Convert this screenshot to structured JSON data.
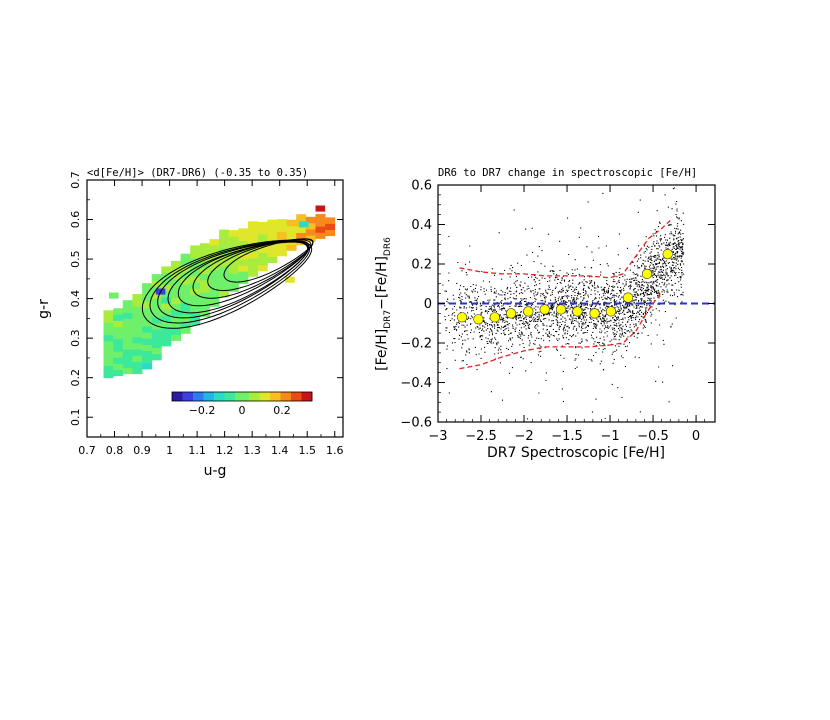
{
  "chart_data": [
    {
      "type": "heatmap",
      "title": "<d[Fe/H]> (DR7-DR6) (-0.35 to 0.35)",
      "xlabel": "u-g",
      "ylabel": "g-r",
      "xlim": [
        0.7,
        1.63
      ],
      "ylim": [
        0.05,
        0.7
      ],
      "xticks": [
        "0.7",
        "0.8",
        "0.9",
        "1",
        "1.1",
        "1.2",
        "1.3",
        "1.4",
        "1.5",
        "1.6"
      ],
      "yticks": [
        "0.1",
        "0.2",
        "0.3",
        "0.4",
        "0.5",
        "0.6",
        "0.7"
      ],
      "grid": false,
      "colorbar": {
        "range": [
          -0.35,
          0.35
        ],
        "ticks": [
          "-0.2",
          "0",
          "0.2"
        ],
        "colors": [
          "#2d1ba0",
          "#3b3fe0",
          "#2f7cf0",
          "#25b4e8",
          "#2adcc8",
          "#3ce89a",
          "#6ef06a",
          "#a8ec3e",
          "#e0e62a",
          "#f7c020",
          "#f78a1a",
          "#ea4a16",
          "#c81414"
        ]
      },
      "band": {
        "x": [
          0.77,
          0.82,
          0.87,
          0.92,
          0.97,
          1.02,
          1.07,
          1.12,
          1.17,
          1.22,
          1.27,
          1.32,
          1.37,
          1.42,
          1.47,
          1.52,
          1.57
        ],
        "y_low": [
          0.2,
          0.21,
          0.21,
          0.23,
          0.28,
          0.3,
          0.33,
          0.36,
          0.4,
          0.42,
          0.45,
          0.47,
          0.5,
          0.52,
          0.54,
          0.55,
          0.56
        ],
        "y_high": [
          0.36,
          0.39,
          0.41,
          0.44,
          0.48,
          0.5,
          0.52,
          0.54,
          0.56,
          0.57,
          0.58,
          0.58,
          0.59,
          0.59,
          0.6,
          0.6,
          0.6
        ]
      },
      "value_trend": {
        "u-g": [
          0.75,
          1.05,
          1.25,
          1.4,
          1.6
        ],
        "delta_feh": [
          -0.02,
          0.0,
          0.06,
          0.12,
          0.25
        ]
      },
      "contours": [
        {
          "center": [
            1.36,
            0.5
          ],
          "a": 0.28,
          "b": 0.045
        },
        {
          "center": [
            1.33,
            0.49
          ],
          "a": 0.33,
          "b": 0.055
        },
        {
          "center": [
            1.3,
            0.48
          ],
          "a": 0.37,
          "b": 0.064
        },
        {
          "center": [
            1.27,
            0.47
          ],
          "a": 0.41,
          "b": 0.072
        },
        {
          "center": [
            1.25,
            0.46
          ],
          "a": 0.44,
          "b": 0.08
        },
        {
          "center": [
            1.23,
            0.455
          ],
          "a": 0.47,
          "b": 0.088
        },
        {
          "center": [
            1.22,
            0.45
          ],
          "a": 0.5,
          "b": 0.096
        },
        {
          "center": [
            1.21,
            0.445
          ],
          "a": 0.53,
          "b": 0.105
        }
      ],
      "contour_angle_deg": 22
    },
    {
      "type": "scatter",
      "title": "DR6 to DR7 change in spectroscopic [Fe/H]",
      "xlabel": "DR7 Spectroscopic [Fe/H]",
      "ylabel_parts": [
        "[Fe/H]",
        "DR7",
        "−[Fe/H]",
        "DR6"
      ],
      "xlim": [
        -3.0,
        0.22
      ],
      "ylim": [
        -0.6,
        0.6
      ],
      "xticks": [
        "-3",
        "-2.5",
        "-2",
        "-1.5",
        "-1",
        "-0.5",
        "0"
      ],
      "yticks": [
        "-0.6",
        "-0.4",
        "-0.2",
        "0",
        "0.2",
        "0.4",
        "0.6"
      ],
      "grid": false,
      "scatter_cloud": {
        "x_range": [
          -2.95,
          -0.15
        ],
        "mean_curve": {
          "x": [
            -2.9,
            -2.5,
            -2.0,
            -1.5,
            -1.1,
            -0.85,
            -0.65,
            -0.45,
            -0.25
          ],
          "y": [
            -0.07,
            -0.07,
            -0.05,
            -0.03,
            -0.04,
            -0.04,
            0.05,
            0.16,
            0.26
          ]
        }
      },
      "reference_line": {
        "y": 0,
        "color": "#2b33d6",
        "style": "dashed"
      },
      "median_points": {
        "x": [
          -2.72,
          -2.53,
          -2.34,
          -2.15,
          -1.95,
          -1.76,
          -1.57,
          -1.38,
          -1.18,
          -0.99,
          -0.79,
          -0.57,
          -0.33
        ],
        "y": [
          -0.07,
          -0.08,
          -0.07,
          -0.05,
          -0.04,
          -0.03,
          -0.03,
          -0.04,
          -0.05,
          -0.04,
          0.03,
          0.15,
          0.25
        ],
        "color": "#ffff00"
      },
      "envelope_upper": {
        "x": [
          -2.75,
          -2.5,
          -2.25,
          -2.0,
          -1.75,
          -1.5,
          -1.25,
          -1.0,
          -0.85,
          -0.7,
          -0.55,
          -0.4,
          -0.3
        ],
        "y": [
          0.18,
          0.16,
          0.15,
          0.15,
          0.14,
          0.14,
          0.14,
          0.13,
          0.15,
          0.24,
          0.33,
          0.38,
          0.42
        ],
        "color": "#e82020"
      },
      "envelope_lower": {
        "x": [
          -2.75,
          -2.5,
          -2.25,
          -2.0,
          -1.75,
          -1.5,
          -1.25,
          -1.0,
          -0.85,
          -0.7,
          -0.55,
          -0.4
        ],
        "y": [
          -0.33,
          -0.31,
          -0.27,
          -0.24,
          -0.22,
          -0.22,
          -0.22,
          -0.21,
          -0.2,
          -0.14,
          -0.03,
          0.06
        ],
        "color": "#e82020"
      }
    }
  ]
}
